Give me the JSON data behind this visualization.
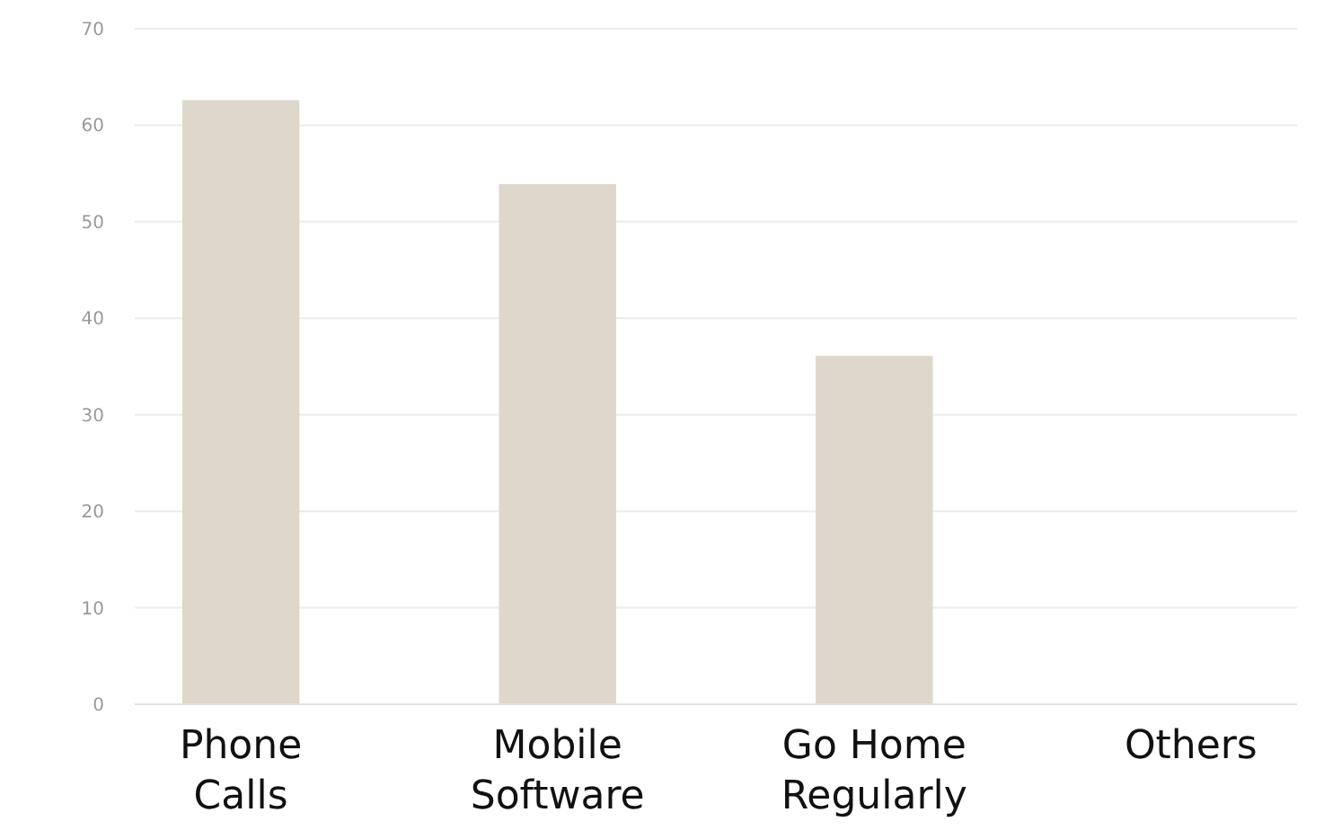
{
  "chart_data": {
    "type": "bar",
    "categories": [
      "Phone\nCalls",
      "Mobile\nSoftware",
      "Go Home\nRegularly",
      "Others"
    ],
    "values": [
      62.6,
      53.9,
      36.1,
      0
    ],
    "color": "#ddd8cb",
    "ylim": [
      0,
      70
    ],
    "yticks": [
      0,
      10,
      20,
      30,
      40,
      50,
      60,
      70
    ],
    "grid": "y"
  }
}
